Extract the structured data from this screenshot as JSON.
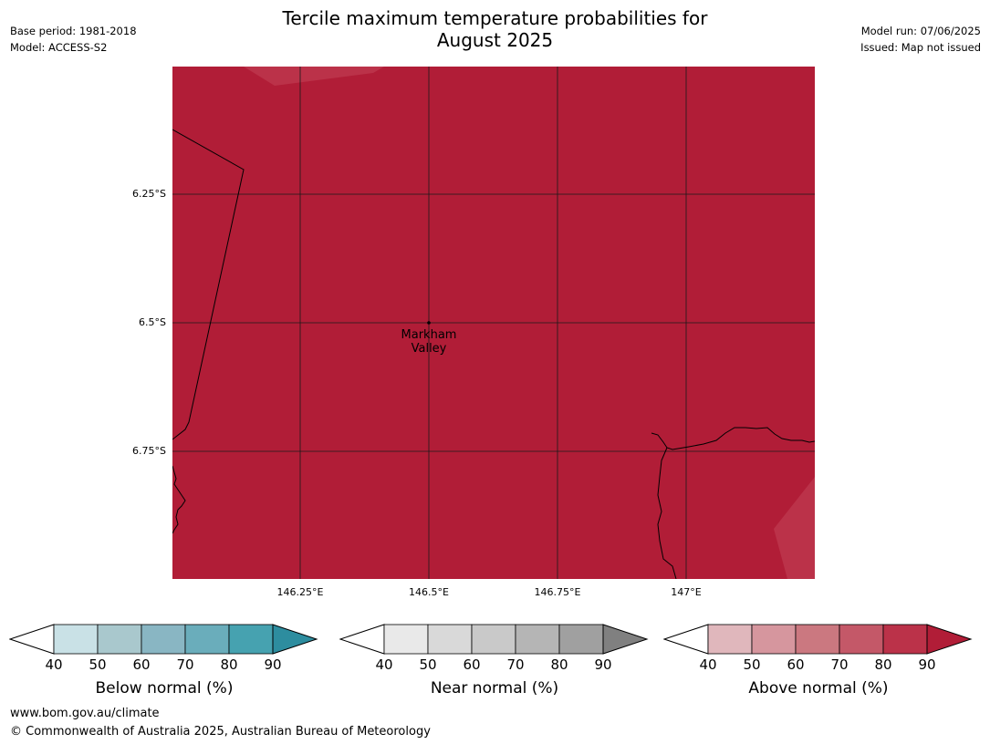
{
  "title_line1": "Tercile maximum temperature probabilities for",
  "title_line2": "August 2025",
  "meta_left": {
    "base_period": "Base period: 1981-2018",
    "model": "Model: ACCESS-S2"
  },
  "meta_right": {
    "model_run": "Model run: 07/06/2025",
    "issued": "Issued: Map not issued"
  },
  "map": {
    "fill_color": "#b11d37",
    "lighter_color": "#bb3249",
    "place": {
      "name_line1": "Markham",
      "name_line2": "Valley"
    },
    "lat_labels": [
      "6.25°S",
      "6.5°S",
      "6.75°S"
    ],
    "lon_labels": [
      "146.25°E",
      "146.5°E",
      "146.75°E",
      "147°E"
    ]
  },
  "legends": [
    {
      "title": "Below normal (%)",
      "ticks": [
        "40",
        "50",
        "60",
        "70",
        "80",
        "90"
      ],
      "colors": [
        "#c9e1e6",
        "#a9c8cd",
        "#89b6c3",
        "#6aadbb",
        "#46a2b0",
        "#2d8d9f"
      ]
    },
    {
      "title": "Near normal (%)",
      "ticks": [
        "40",
        "50",
        "60",
        "70",
        "80",
        "90"
      ],
      "colors": [
        "#e9e9e9",
        "#d9d9d9",
        "#c9c9c9",
        "#b5b5b5",
        "#a0a0a0",
        "#808080"
      ]
    },
    {
      "title": "Above normal (%)",
      "ticks": [
        "40",
        "50",
        "60",
        "70",
        "80",
        "90"
      ],
      "colors": [
        "#e0b7bc",
        "#d6969e",
        "#cb7880",
        "#c45868",
        "#bb3249",
        "#b11d37"
      ]
    }
  ],
  "footer": {
    "url": "www.bom.gov.au/climate",
    "copyright": "© Commonwealth of Australia 2025, Australian Bureau of Meteorology"
  }
}
